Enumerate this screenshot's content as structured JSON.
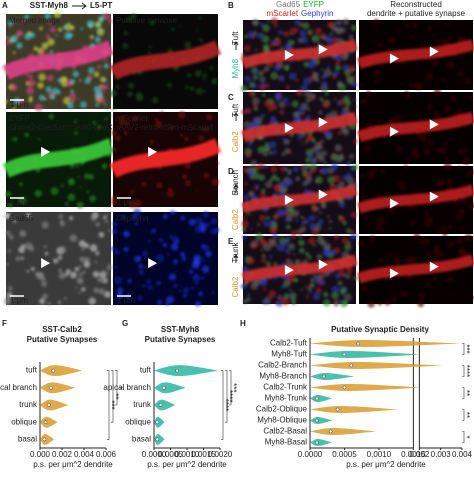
{
  "figure": {
    "panel_letters": [
      "A",
      "B",
      "C",
      "D",
      "E",
      "F",
      "G",
      "H"
    ],
    "a": {
      "header_left": "SST-Myh8",
      "header_right": "L5-PT",
      "tiles": [
        {
          "label": "Merged image",
          "scale": "1 μm"
        },
        {
          "label": "Putative synapse"
        },
        {
          "label": "EYFP",
          "sublabel": [
            "Chrna2-Cre;Sst",
            "FlpO",
            ";Ai80-CatCh-EYFP"
          ],
          "scale": "1 μm"
        },
        {
          "label": "mScarlet",
          "sublabel": [
            "rAAV2-retro-hSyn-mScarlet"
          ],
          "scale": "1 μm"
        },
        {
          "label": "Gad65",
          "scale": "1 μm"
        },
        {
          "label": "Gephyrin",
          "scale": "1 μm"
        }
      ]
    },
    "be": {
      "channels_1": [
        "Gad65",
        "EYFP"
      ],
      "channels_2": [
        "mScarlet",
        "Gephyrin"
      ],
      "header_right": [
        "Reconstructed",
        "dendrite + putative synapse"
      ],
      "rows": [
        {
          "cell": "Myh8",
          "target": "Tuft"
        },
        {
          "cell": "Calb2",
          "target": "Tuft"
        },
        {
          "cell": "Calb2",
          "target": "Branch"
        },
        {
          "cell": "Calb2",
          "target": "Trunk"
        }
      ]
    }
  },
  "chart_data": [
    {
      "type": "violin",
      "title": [
        "SST-Calb2",
        "Putative Synapses"
      ],
      "title_color": "#d99b2b",
      "color": "#d99b2b",
      "categories": [
        "tuft",
        "apical branch",
        "trunk",
        "oblique",
        "basal"
      ],
      "values": [
        0.0012,
        0.001,
        0.0008,
        0.0005,
        0.0004
      ],
      "xlim": [
        0,
        0.006
      ],
      "xticks": [
        {
          "value": 0,
          "label": "0.000"
        },
        {
          "value": 0.002,
          "label": "0.002"
        },
        {
          "value": 0.004,
          "label": "0.004"
        },
        {
          "value": 0.006,
          "label": "0.006"
        }
      ],
      "xlabel": "p.s. per μm^2 dendrite",
      "annotations": [
        "***",
        "**",
        "*"
      ]
    },
    {
      "type": "violin",
      "title": [
        "SST-Myh8",
        "Putative Synapses"
      ],
      "title_color": "#2ab5a0",
      "color": "#2ab5a0",
      "categories": [
        "tuft",
        "apical branch",
        "trunk",
        "oblique",
        "basal"
      ],
      "values": [
        0.0007,
        0.0003,
        0.0002,
        0.0001,
        0.0001
      ],
      "xlim": [
        0,
        0.002
      ],
      "xticks": [
        {
          "value": 0,
          "label": "0.0000"
        },
        {
          "value": 0.0005,
          "label": "0.0005"
        },
        {
          "value": 0.001,
          "label": "0.0010"
        },
        {
          "value": 0.0015,
          "label": "0.0015"
        },
        {
          "value": 0.002,
          "label": "0.0020"
        }
      ],
      "xlabel": "p.s. per μm^2 dendrite",
      "annotations": [
        "****",
        "****",
        "***"
      ]
    },
    {
      "type": "violin",
      "title": [
        "Putative Synaptic Density"
      ],
      "title_color": "#222222",
      "categories": [
        "Calb2-Tuft",
        "Myh8-Tuft",
        "Calb2-Branch",
        "Myh8-Branch",
        "Calb2-Trunk",
        "Myh8-Trunk",
        "Calb2-Oblique",
        "Myh8-Oblique",
        "Calb2-Basal",
        "Myh8-Basal"
      ],
      "colors": [
        "#d99b2b",
        "#2ab5a0",
        "#d99b2b",
        "#2ab5a0",
        "#d99b2b",
        "#2ab5a0",
        "#d99b2b",
        "#2ab5a0",
        "#d99b2b",
        "#2ab5a0"
      ],
      "values": [
        0.0007,
        0.0005,
        0.0006,
        0.0002,
        0.0005,
        0.0001,
        0.0004,
        0.0001,
        0.0003,
        0.0001
      ],
      "xlim": [
        0,
        0.004
      ],
      "xbreak": [
        0.0015,
        0.002
      ],
      "xticks": [
        {
          "value": 0,
          "label": "0.0000"
        },
        {
          "value": 0.0005,
          "label": "0.0005"
        },
        {
          "value": 0.001,
          "label": "0.0010"
        },
        {
          "value": 0.0015,
          "label": "0.0015"
        },
        {
          "value": 0.002,
          "label": "0.002"
        },
        {
          "value": 0.003,
          "label": "0.003"
        },
        {
          "value": 0.004,
          "label": "0.004"
        }
      ],
      "xlabel": "p.s. per μm^2 dendrite",
      "annotations": [
        "***",
        "****",
        "**",
        "**",
        "*"
      ]
    }
  ]
}
